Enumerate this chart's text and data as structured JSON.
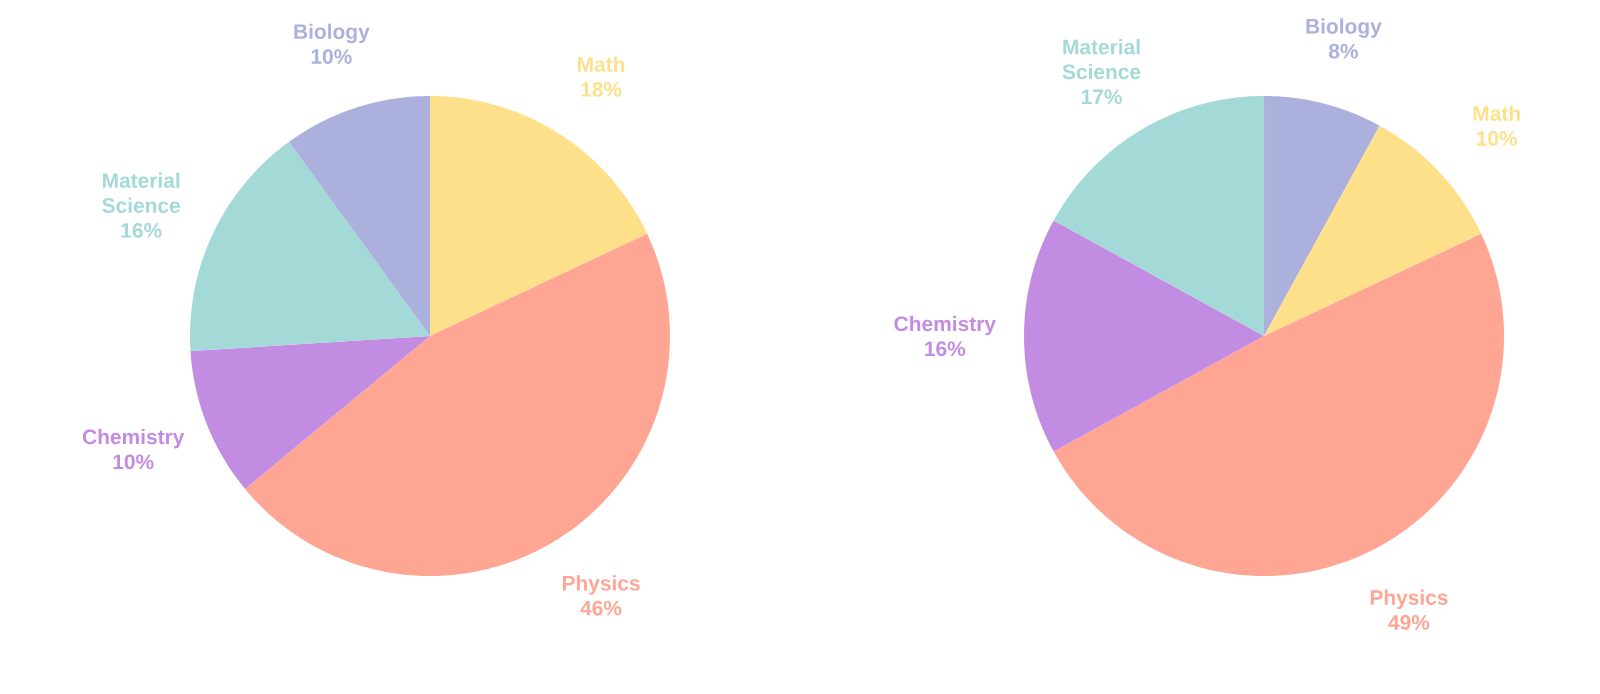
{
  "chart_data": [
    {
      "type": "pie",
      "categories": [
        "Math",
        "Physics",
        "Chemistry",
        "Material Science",
        "Biology"
      ],
      "values": [
        18,
        46,
        10,
        16,
        10
      ],
      "value_labels": [
        "18%",
        "46%",
        "10%",
        "16%",
        "10%"
      ],
      "colors": [
        "#ffe08a",
        "#fea593",
        "#c38ce3",
        "#a3d9d6",
        "#abb1dc"
      ]
    },
    {
      "type": "pie",
      "categories": [
        "Biology",
        "Math",
        "Physics",
        "Chemistry",
        "Material Science"
      ],
      "values": [
        8,
        10,
        49,
        16,
        17
      ],
      "value_labels": [
        "8%",
        "10%",
        "49%",
        "16%",
        "17%"
      ],
      "colors": [
        "#abb1dc",
        "#ffe08a",
        "#fea593",
        "#c38ce3",
        "#a3d9d6"
      ]
    }
  ]
}
